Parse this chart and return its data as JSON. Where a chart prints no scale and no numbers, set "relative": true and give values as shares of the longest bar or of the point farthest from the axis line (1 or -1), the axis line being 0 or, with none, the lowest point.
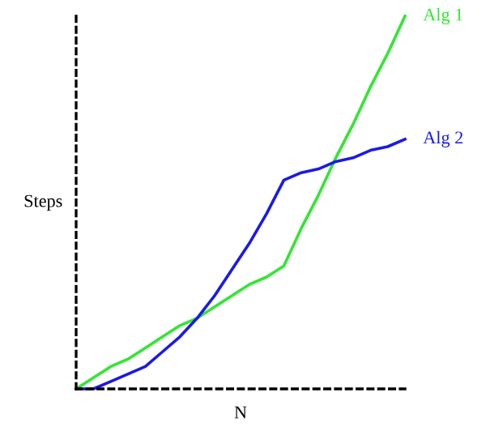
{
  "chart_data": {
    "type": "line",
    "relative": true,
    "xlabel": "N",
    "ylabel": "Steps",
    "marker": "none",
    "line_style": "solid",
    "categories": [
      null,
      null,
      null,
      null,
      null,
      null,
      null,
      null,
      null,
      null,
      null,
      null,
      null,
      null,
      null,
      null,
      null,
      null,
      null,
      null
    ],
    "series": [
      {
        "name": "Alg 1",
        "color": "#33e633",
        "values": [
          0,
          0.03,
          0.06,
          0.08,
          0.11,
          0.14,
          0.17,
          0.19,
          0.22,
          0.25,
          0.28,
          0.3,
          0.33,
          0.43,
          0.52,
          0.62,
          0.71,
          0.81,
          0.9,
          1
        ]
      },
      {
        "name": "Alg 2",
        "color": "#1a1ae6",
        "values": [
          0,
          0.0,
          0.02,
          0.04,
          0.06,
          0.1,
          0.14,
          0.19,
          0.25,
          0.32,
          0.39,
          0.47,
          0.56,
          0.58,
          0.59,
          0.61,
          0.62,
          0.64,
          0.65,
          0.67
        ]
      }
    ]
  }
}
